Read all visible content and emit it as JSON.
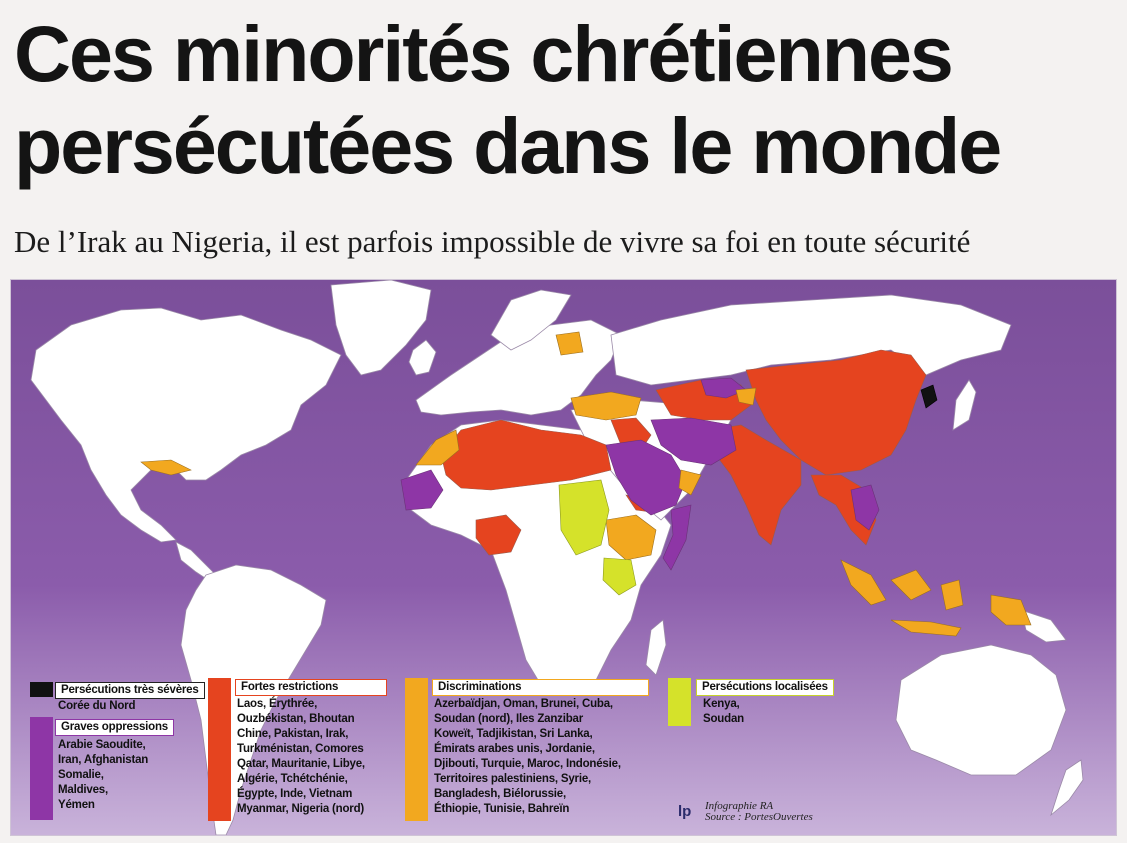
{
  "header": {
    "title_line1": "Ces minorités chrétiennes",
    "title_line2": "persécutées dans le monde",
    "subtitle": "De l’Irak au Nigeria, il est parfois impossible de vivre sa foi en toute sécurité"
  },
  "legend": {
    "categories": [
      {
        "label": "Persécutions très sévères",
        "color": "#111111",
        "countries": "Corée du Nord"
      },
      {
        "label": "Graves oppressions",
        "color": "#8e36a6",
        "countries": "Arabie Saoudite,\nIran, Afghanistan\nSomalie,\nMaldives,\nYémen"
      },
      {
        "label": "Fortes restrictions",
        "color": "#e5441f",
        "countries": "Laos, Érythrée,\nOuzbékistan, Bhoutan\nChine, Pakistan, Irak,\nTurkménistan, Comores\nQatar, Mauritanie, Libye,\nAlgérie, Tchétchénie,\nÉgypte, Inde, Vietnam\nMyanmar, Nigeria (nord)"
      },
      {
        "label": "Discriminations",
        "color": "#f2a81f",
        "countries": "Azerbaïdjan, Oman, Brunei, Cuba,\nSoudan (nord), Iles Zanzibar\nKoweït, Tadjikistan, Sri Lanka,\nÉmirats arabes unis, Jordanie,\nDjibouti, Turquie, Maroc, Indonésie,\nTerritoires palestiniens, Syrie,\nBangladesh, Biélorussie,\nÉthiopie, Tunisie, Bahreïn"
      },
      {
        "label": "Persécutions localisées",
        "color": "#d5e22a",
        "countries": "Kenya,\nSoudan"
      }
    ]
  },
  "credit": {
    "logo": "lp",
    "line1": "Infographie RA",
    "line2": "Source : PortesOuvertes"
  },
  "colors": {
    "ocean": "#8a5aa6",
    "land": "#ffffff",
    "very_severe": "#111111",
    "grave": "#8e36a6",
    "strong": "#e5441f",
    "discrimination": "#f2a81f",
    "localized": "#d5e22a"
  }
}
